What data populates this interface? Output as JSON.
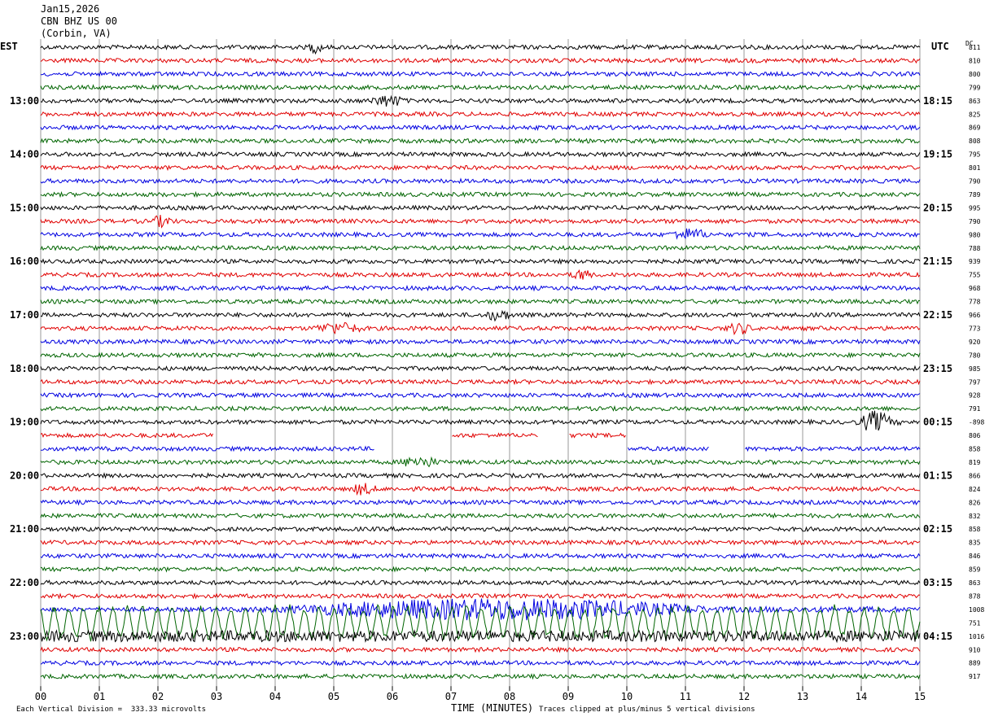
{
  "header": {
    "date": "Jan15,2026",
    "station": "CBN BHZ US 00",
    "location": "(Corbin, VA)"
  },
  "labels": {
    "left_tz": "EST",
    "right_tz": "UTC",
    "dc_header": "DC",
    "xlabel": "TIME (MINUTES)"
  },
  "footer": {
    "scale_note": "Each Vertical Division =  333.33 microvolts",
    "clip_note": "Traces clipped at plus/minus 5 vertical divisions"
  },
  "chart_data": {
    "type": "line",
    "title": "CBN BHZ US 00 (Corbin, VA)",
    "xlabel": "TIME (MINUTES)",
    "xlim": [
      0,
      15
    ],
    "x_ticks": [
      "00",
      "01",
      "02",
      "03",
      "04",
      "05",
      "06",
      "07",
      "08",
      "09",
      "10",
      "11",
      "12",
      "13",
      "14",
      "15"
    ],
    "rows_per_hour": 4,
    "trace_color_cycle": [
      "#000000",
      "#e00000",
      "#0000e0",
      "#006400"
    ],
    "left_time_labels": [
      {
        "row": 4,
        "label": "13:00"
      },
      {
        "row": 8,
        "label": "14:00"
      },
      {
        "row": 12,
        "label": "15:00"
      },
      {
        "row": 16,
        "label": "16:00"
      },
      {
        "row": 20,
        "label": "17:00"
      },
      {
        "row": 24,
        "label": "18:00"
      },
      {
        "row": 28,
        "label": "19:00"
      },
      {
        "row": 32,
        "label": "20:00"
      },
      {
        "row": 36,
        "label": "21:00"
      },
      {
        "row": 40,
        "label": "22:00"
      },
      {
        "row": 44,
        "label": "23:00"
      }
    ],
    "right_time_labels": [
      {
        "row": 4,
        "label": "18:15"
      },
      {
        "row": 8,
        "label": "19:15"
      },
      {
        "row": 12,
        "label": "20:15"
      },
      {
        "row": 16,
        "label": "21:15"
      },
      {
        "row": 20,
        "label": "22:15"
      },
      {
        "row": 24,
        "label": "23:15"
      },
      {
        "row": 28,
        "label": "00:15"
      },
      {
        "row": 32,
        "label": "01:15"
      },
      {
        "row": 36,
        "label": "02:15"
      },
      {
        "row": 40,
        "label": "03:15"
      },
      {
        "row": 44,
        "label": "04:15"
      }
    ],
    "dc_offsets": [
      "811",
      "810",
      "800",
      "799",
      "863",
      "825",
      "869",
      "808",
      "795",
      "801",
      "790",
      "789",
      "995",
      "790",
      "980",
      "788",
      "939",
      "755",
      "968",
      "778",
      "966",
      "773",
      "920",
      "780",
      "985",
      "797",
      "928",
      "791",
      "-898",
      "806",
      "858",
      "819",
      "866",
      "824",
      "826",
      "832",
      "858",
      "835",
      "846",
      "859",
      "863",
      "878",
      "1008",
      "751",
      "1016",
      "910",
      "889",
      "917"
    ],
    "events": [
      {
        "row": 0,
        "start_min": 4.5,
        "end_min": 5.0,
        "amp": "moderate"
      },
      {
        "row": 4,
        "start_min": 5.5,
        "end_min": 6.6,
        "amp": "moderate"
      },
      {
        "row": 13,
        "start_min": 1.8,
        "end_min": 2.5,
        "amp": "moderate"
      },
      {
        "row": 14,
        "start_min": 10.6,
        "end_min": 11.8,
        "amp": "moderate"
      },
      {
        "row": 17,
        "start_min": 9.0,
        "end_min": 9.6,
        "amp": "moderate"
      },
      {
        "row": 20,
        "start_min": 7.5,
        "end_min": 8.3,
        "amp": "moderate"
      },
      {
        "row": 21,
        "start_min": 4.5,
        "end_min": 6.0,
        "amp": "moderate"
      },
      {
        "row": 21,
        "start_min": 11.6,
        "end_min": 12.4,
        "amp": "moderate"
      },
      {
        "row": 28,
        "start_min": 13.9,
        "end_min": 14.8,
        "amp": "strong"
      },
      {
        "row": 31,
        "start_min": 6.0,
        "end_min": 7.2,
        "amp": "moderate"
      },
      {
        "row": 33,
        "start_min": 5.2,
        "end_min": 6.0,
        "amp": "moderate"
      },
      {
        "row": 42,
        "start_min": 3.3,
        "end_min": 15.0,
        "amp": "strong"
      },
      {
        "row": 43,
        "start_min": 0.0,
        "end_min": 15.0,
        "amp": "teleseism"
      },
      {
        "row": 44,
        "start_min": 0.0,
        "end_min": 15.0,
        "amp": "elevated"
      }
    ],
    "gaps": [
      {
        "row": 29,
        "start_min": 2.95,
        "end_min": 7.0
      },
      {
        "row": 29,
        "start_min": 8.5,
        "end_min": 9.0
      },
      {
        "row": 29,
        "start_min": 10.0,
        "end_min": 15.0
      },
      {
        "row": 30,
        "start_min": 5.7,
        "end_min": 10.0
      },
      {
        "row": 30,
        "start_min": 11.4,
        "end_min": 12.0
      }
    ]
  }
}
